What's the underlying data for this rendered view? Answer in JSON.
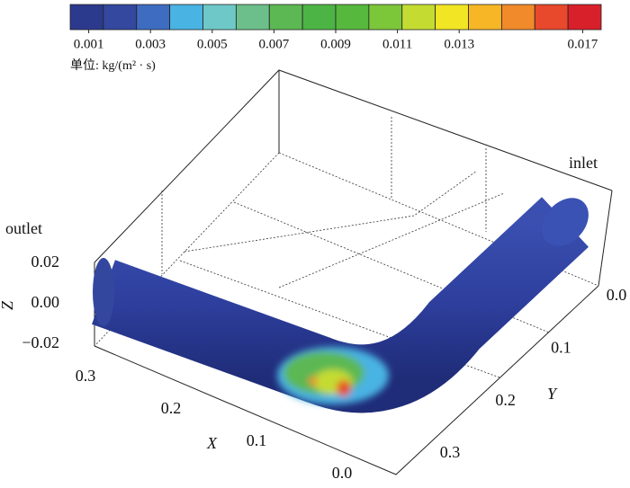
{
  "chart_data": {
    "type": "surface3d",
    "colorbar": {
      "unit_label": "单位: kg/(m² · s)",
      "colors": [
        "#2b3a8c",
        "#33489e",
        "#3d6cc0",
        "#49b3e3",
        "#6ec8c8",
        "#6cbf8a",
        "#5bb852",
        "#4cb444",
        "#56b83d",
        "#7cc63a",
        "#c4dc32",
        "#f1e524",
        "#f7b626",
        "#f08a2a",
        "#e8482b",
        "#d8202a"
      ],
      "lim": [
        0.0004,
        0.0176
      ],
      "ticks": [
        0.001,
        0.003,
        0.005,
        0.007,
        0.009,
        0.011,
        0.013,
        0.017
      ]
    },
    "labels": {
      "outlet": "outlet",
      "inlet": "inlet"
    },
    "xlabel": "X",
    "ylabel": "Y",
    "zlabel": "Z",
    "xlim": [
      0.3,
      0
    ],
    "xticks": [
      0.3,
      0.2,
      0.1,
      {
        "value": 0,
        "label": "0.0"
      }
    ],
    "ylim": [
      0,
      0.3
    ],
    "yticks": [
      {
        "value": 0,
        "label": "0.0"
      },
      0.1,
      0.2,
      0.3
    ],
    "zlim": [
      0.02,
      -0.02
    ],
    "zticks": [
      0.02,
      {
        "value": 0,
        "label": "0.00"
      },
      {
        "value": -0.02,
        "label": "−0.02"
      }
    ]
  }
}
